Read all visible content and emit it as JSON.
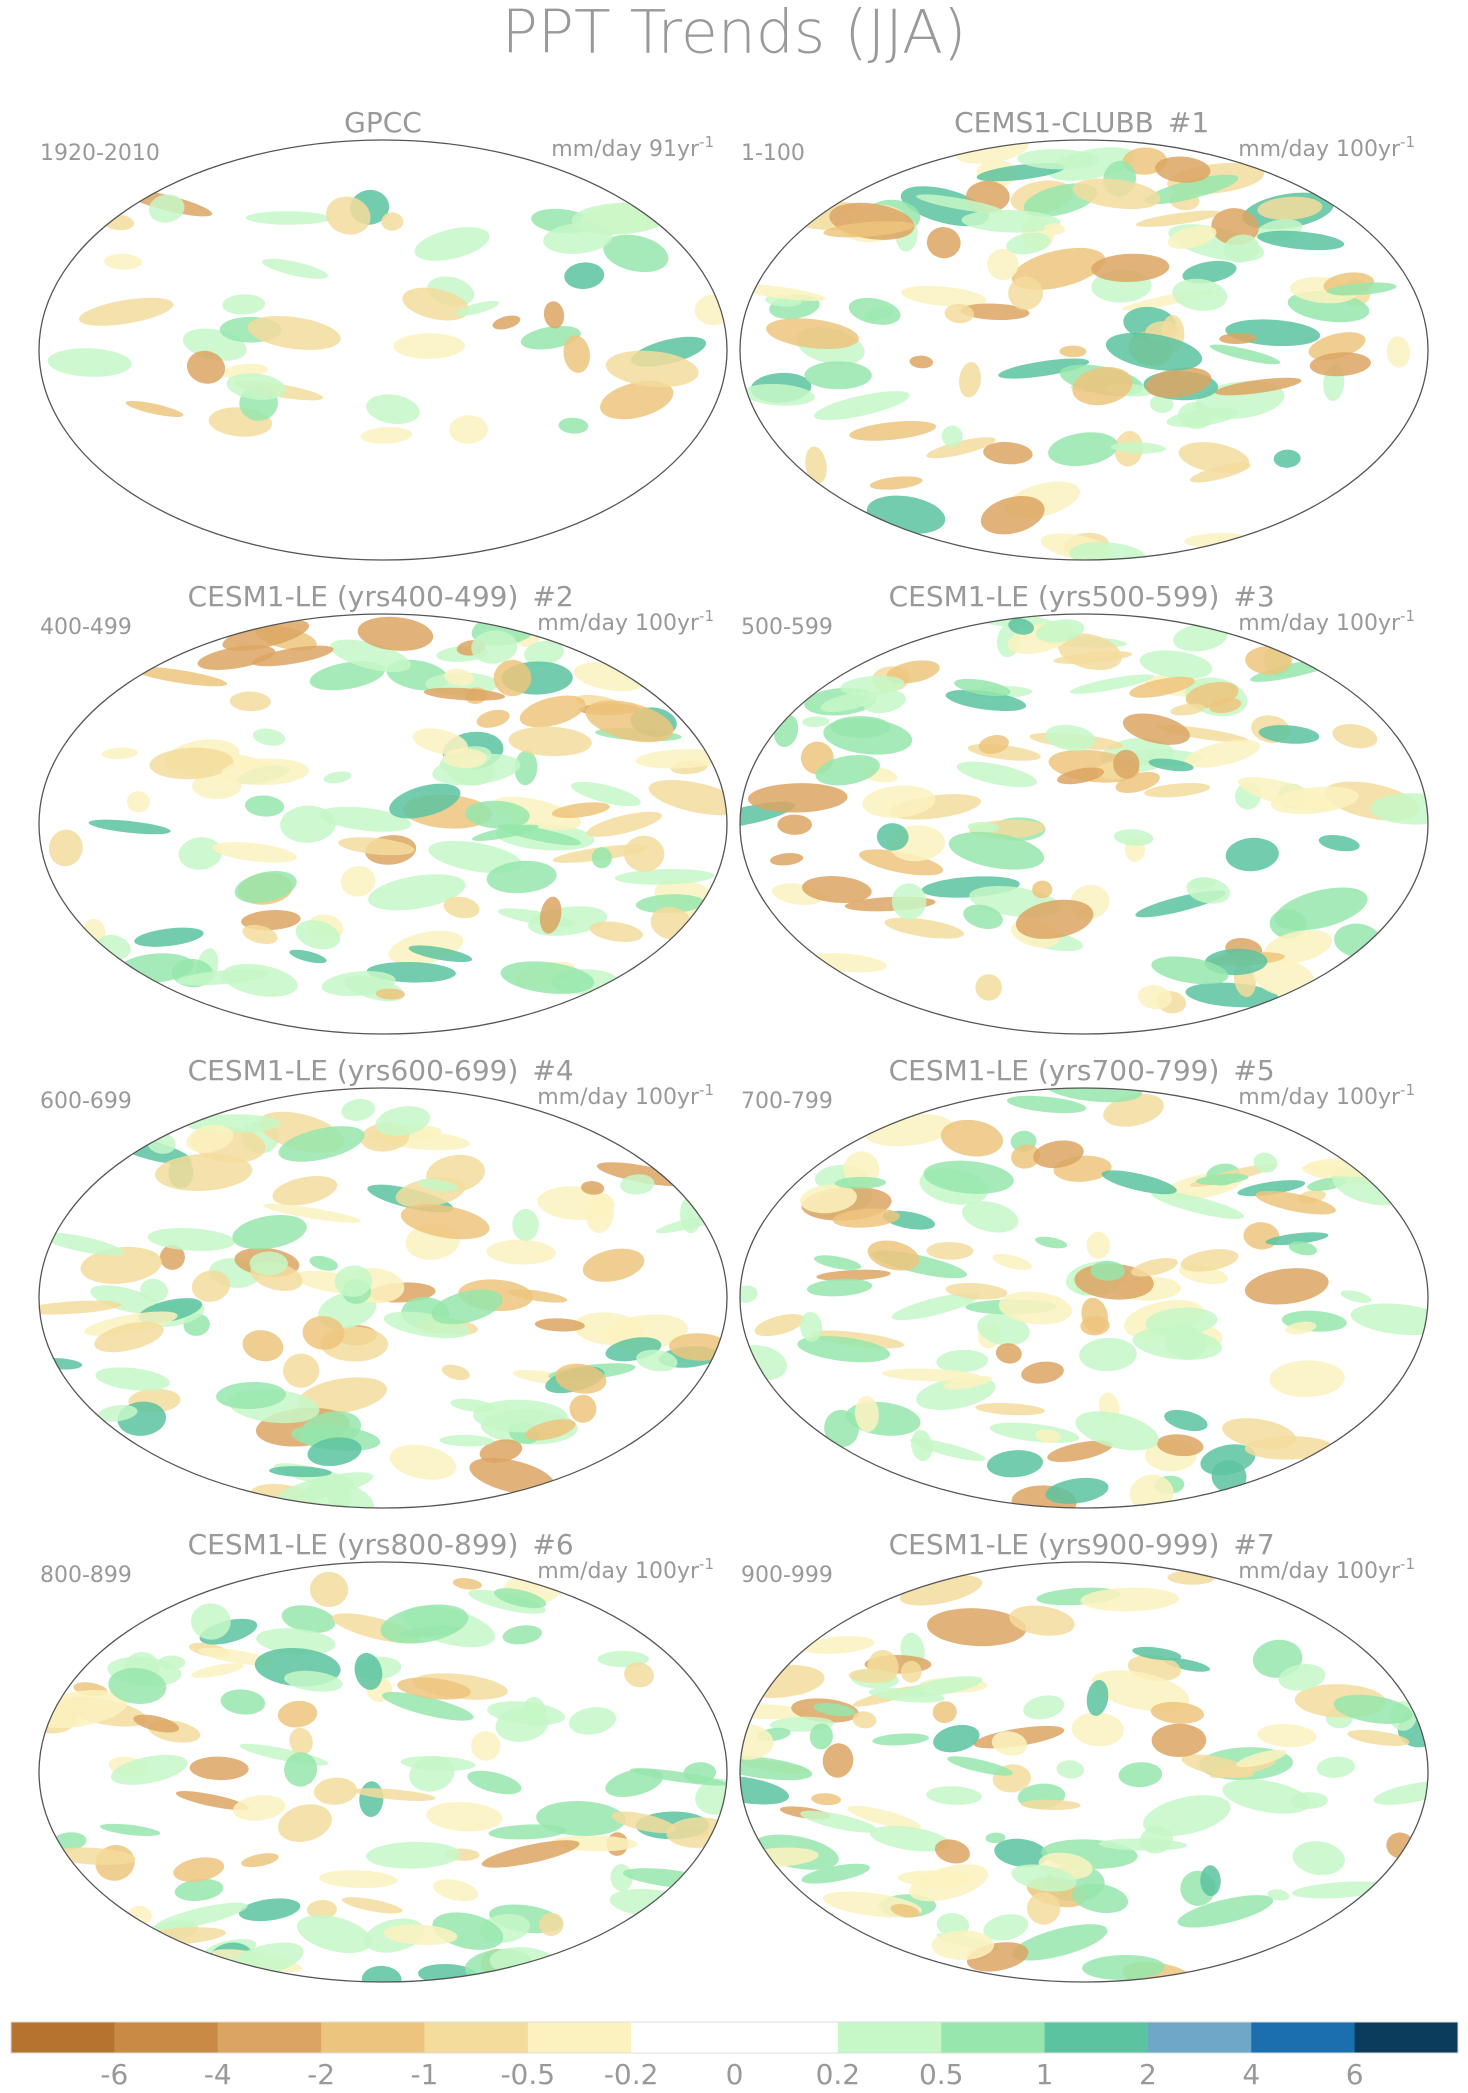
{
  "header": {
    "title": "PPT Trends (JJA)"
  },
  "panels": [
    {
      "title": "GPCC",
      "period": "1920-2010",
      "units": {
        "text": "mm/day 91yr",
        "sup": "-1"
      }
    },
    {
      "title": "CEMS1-CLUBB",
      "number": "#1",
      "period": "1-100",
      "units": {
        "text": "mm/day 100yr",
        "sup": "-1"
      }
    },
    {
      "title": "CESM1-LE (yrs400-499)",
      "number": "#2",
      "period": "400-499",
      "units": {
        "text": "mm/day 100yr",
        "sup": "-1"
      }
    },
    {
      "title": "CESM1-LE (yrs500-599)",
      "number": "#3",
      "period": "500-599",
      "units": {
        "text": "mm/day 100yr",
        "sup": "-1"
      }
    },
    {
      "title": "CESM1-LE (yrs600-699)",
      "number": "#4",
      "period": "600-699",
      "units": {
        "text": "mm/day 100yr",
        "sup": "-1"
      }
    },
    {
      "title": "CESM1-LE (yrs700-799)",
      "number": "#5",
      "period": "700-799",
      "units": {
        "text": "mm/day 100yr",
        "sup": "-1"
      }
    },
    {
      "title": "CESM1-LE (yrs800-899)",
      "number": "#6",
      "period": "800-899",
      "units": {
        "text": "mm/day 100yr",
        "sup": "-1"
      }
    },
    {
      "title": "CESM1-LE (yrs900-999)",
      "number": "#7",
      "period": "900-999",
      "units": {
        "text": "mm/day 100yr",
        "sup": "-1"
      }
    }
  ],
  "colorbar": {
    "colors": [
      "#b5732f",
      "#c98a45",
      "#dca463",
      "#edc47d",
      "#f3dc9c",
      "#fbf2c0",
      "#ffffff",
      "#ffffff",
      "#c5f7c7",
      "#96e6ad",
      "#5cc3a0",
      "#6ea8c9",
      "#1c6fae",
      "#0b3c5c"
    ],
    "levels": [
      -6,
      -4,
      -2,
      -1,
      -0.5,
      -0.2,
      0,
      0.2,
      0.5,
      1,
      2,
      4,
      6
    ]
  }
}
